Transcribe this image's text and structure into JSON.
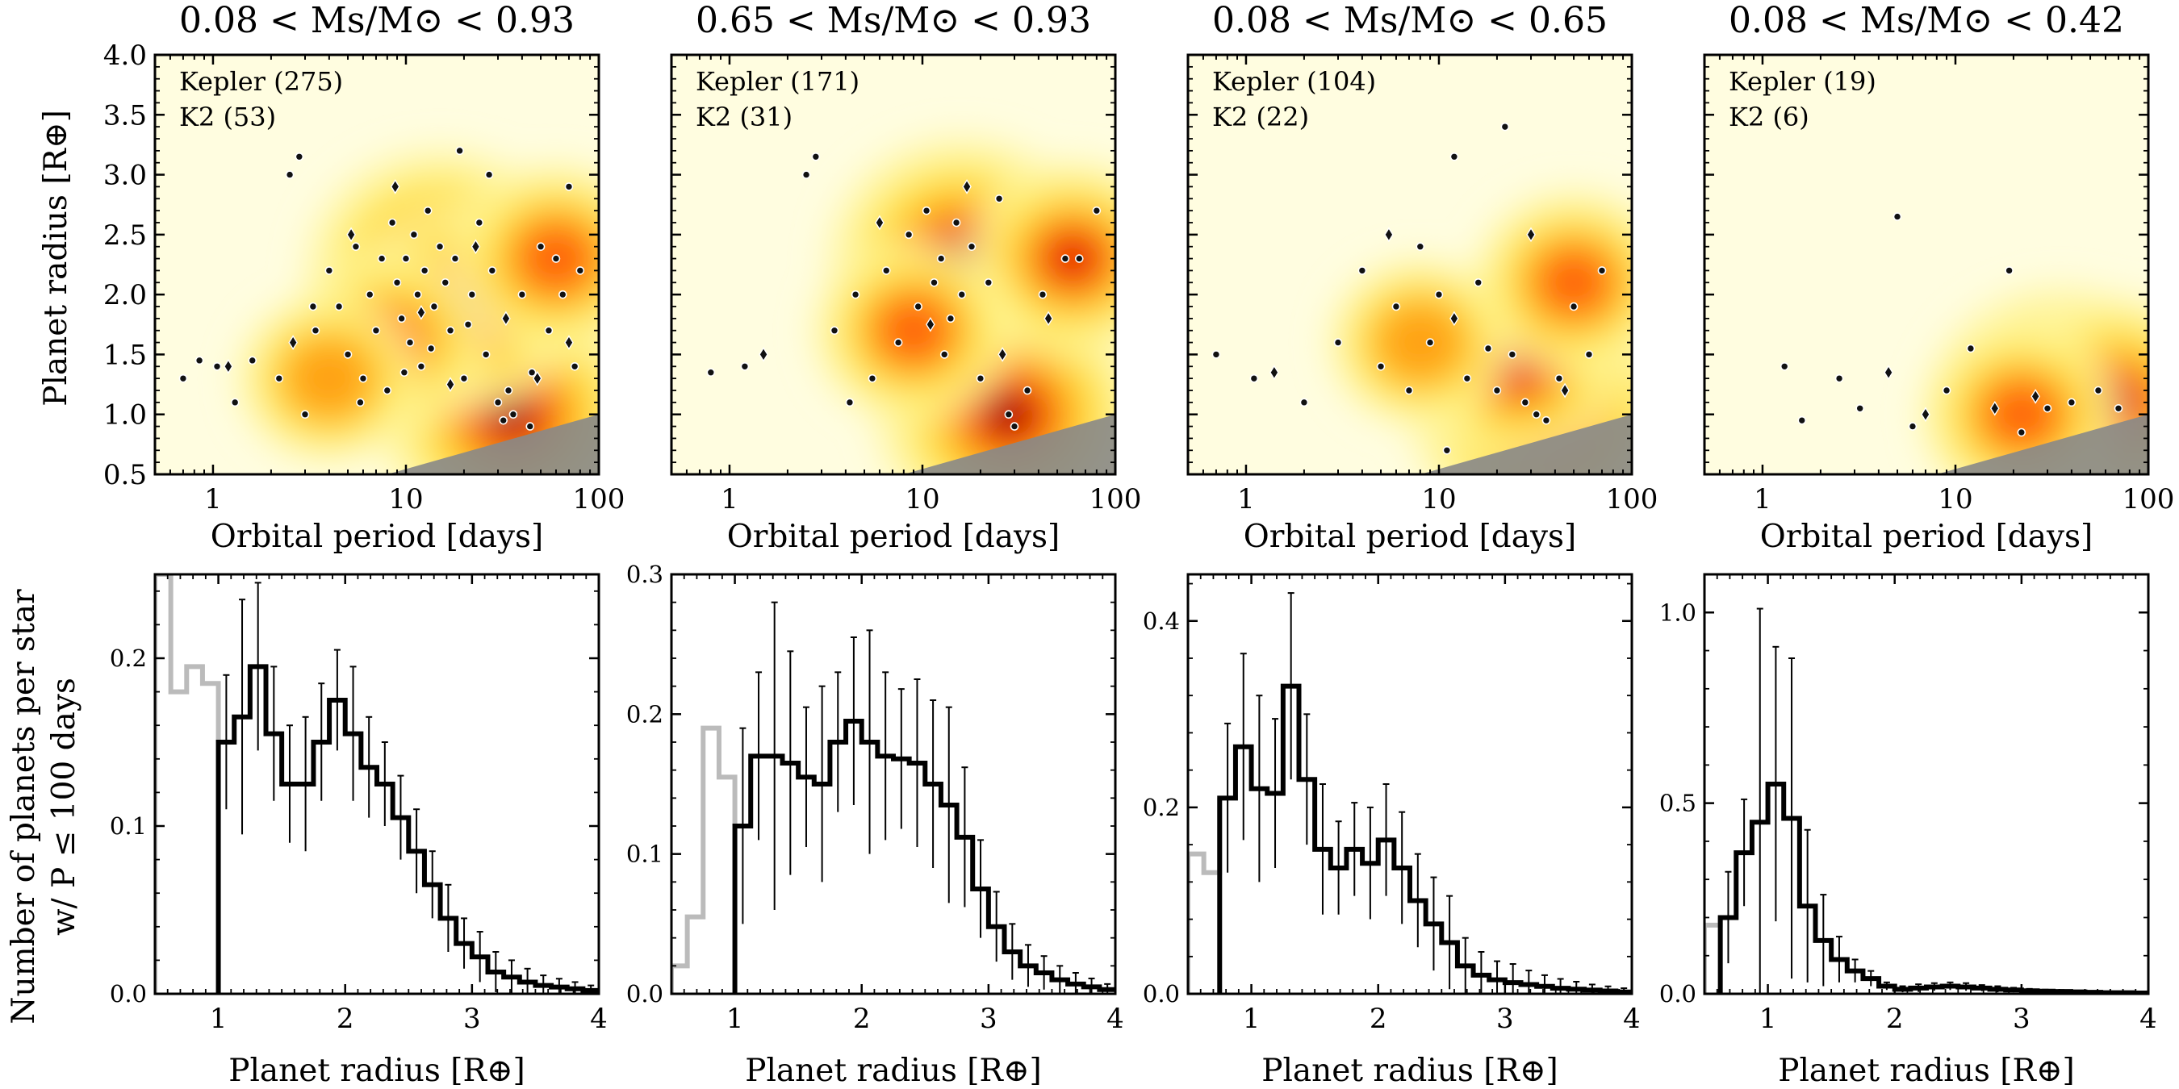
{
  "figure": {
    "ylabel_top": "Planet radius [R⊕]",
    "ylabel_bottom_line1": "Number of planets per star",
    "ylabel_bottom_line2": "w/ P ≤ 100 days",
    "xlabel_top": "Orbital period [days]",
    "xlabel_bottom": "Planet radius [R⊕]"
  },
  "colors": {
    "frame": "#000000",
    "background": "#fffde0",
    "hist_main": "#000000",
    "hist_low": "#bbbbbb",
    "undetectable": "#888888"
  },
  "chart_data": [
    {
      "type": "scatter",
      "title": "0.08 < Ms/M⊙ < 0.93",
      "xlabel": "Orbital period [days]",
      "ylabel": "Planet radius [R⊕]",
      "x_scale": "log",
      "xlim": [
        0.5,
        100
      ],
      "ylim": [
        0.5,
        4.0
      ],
      "x_ticks": [
        "1",
        "10",
        "100"
      ],
      "y_ticks": [
        "0.5",
        "1.0",
        "1.5",
        "2.0",
        "2.5",
        "3.0",
        "3.5",
        "4.0"
      ],
      "legend": [
        "Kepler (275)",
        "K2 (53)"
      ],
      "legend_placement": "top-left",
      "density_peaks": [
        [
          15,
          2.2,
          1.0
        ],
        [
          35,
          1.0,
          1.0
        ],
        [
          20,
          1.9,
          0.7
        ],
        [
          60,
          2.3,
          0.5
        ],
        [
          8,
          1.6,
          0.45
        ],
        [
          4,
          1.3,
          0.3
        ]
      ],
      "kepler_points": [
        [
          0.7,
          1.3
        ],
        [
          0.85,
          1.45
        ],
        [
          1.05,
          1.4
        ],
        [
          1.3,
          1.1
        ],
        [
          1.6,
          1.45
        ],
        [
          2.2,
          1.3
        ],
        [
          2.5,
          3.0
        ],
        [
          2.8,
          3.15
        ],
        [
          3.0,
          1.0
        ],
        [
          3.4,
          1.7
        ],
        [
          4.0,
          2.2
        ],
        [
          4.5,
          1.9
        ],
        [
          5.0,
          1.5
        ],
        [
          5.5,
          2.4
        ],
        [
          6.0,
          1.3
        ],
        [
          6.5,
          2.0
        ],
        [
          7.0,
          1.7
        ],
        [
          7.5,
          2.3
        ],
        [
          8.0,
          1.2
        ],
        [
          8.5,
          2.6
        ],
        [
          9.0,
          2.1
        ],
        [
          9.5,
          1.8
        ],
        [
          10,
          2.3
        ],
        [
          10.5,
          1.6
        ],
        [
          11,
          2.5
        ],
        [
          11.5,
          2.0
        ],
        [
          12,
          1.4
        ],
        [
          12.5,
          2.2
        ],
        [
          13,
          2.7
        ],
        [
          14,
          1.9
        ],
        [
          15,
          2.4
        ],
        [
          16,
          2.1
        ],
        [
          17,
          1.7
        ],
        [
          18,
          2.3
        ],
        [
          19,
          3.2
        ],
        [
          20,
          1.3
        ],
        [
          22,
          2.0
        ],
        [
          24,
          2.6
        ],
        [
          26,
          1.5
        ],
        [
          28,
          2.2
        ],
        [
          30,
          1.1
        ],
        [
          32,
          0.95
        ],
        [
          34,
          1.2
        ],
        [
          36,
          1.0
        ],
        [
          40,
          2.0
        ],
        [
          45,
          1.35
        ],
        [
          50,
          2.4
        ],
        [
          55,
          1.7
        ],
        [
          60,
          2.3
        ],
        [
          65,
          2.0
        ],
        [
          70,
          2.9
        ],
        [
          75,
          1.4
        ],
        [
          80,
          2.2
        ],
        [
          3.3,
          1.9
        ],
        [
          5.8,
          1.1
        ],
        [
          9.8,
          1.35
        ],
        [
          13.5,
          1.55
        ],
        [
          21,
          1.75
        ],
        [
          27,
          3.0
        ],
        [
          44,
          0.9
        ]
      ],
      "k2_points": [
        [
          1.2,
          1.4
        ],
        [
          2.6,
          1.6
        ],
        [
          5.2,
          2.5
        ],
        [
          8.8,
          2.9
        ],
        [
          12,
          1.85
        ],
        [
          17,
          1.25
        ],
        [
          23,
          2.4
        ],
        [
          33,
          1.8
        ],
        [
          48,
          1.3
        ],
        [
          70,
          1.6
        ]
      ]
    },
    {
      "type": "scatter",
      "title": "0.65 < Ms/M⊙ < 0.93",
      "xlabel": "Orbital period [days]",
      "ylabel": "",
      "x_scale": "log",
      "xlim": [
        0.5,
        100
      ],
      "ylim": [
        0.5,
        4.0
      ],
      "x_ticks": [
        "1",
        "10",
        "100"
      ],
      "y_ticks": [],
      "legend": [
        "Kepler (171)",
        "K2 (31)"
      ],
      "legend_placement": "top-left",
      "density_peaks": [
        [
          16,
          2.3,
          1.0
        ],
        [
          28,
          1.0,
          1.0
        ],
        [
          60,
          2.3,
          0.55
        ],
        [
          9,
          1.7,
          0.45
        ]
      ],
      "kepler_points": [
        [
          0.8,
          1.35
        ],
        [
          1.2,
          1.4
        ],
        [
          2.5,
          3.0
        ],
        [
          2.8,
          3.15
        ],
        [
          3.5,
          1.7
        ],
        [
          4.5,
          2.0
        ],
        [
          5.5,
          1.3
        ],
        [
          6.5,
          2.2
        ],
        [
          7.5,
          1.6
        ],
        [
          8.5,
          2.5
        ],
        [
          9.5,
          1.9
        ],
        [
          10.5,
          2.7
        ],
        [
          11.5,
          2.1
        ],
        [
          12.5,
          2.3
        ],
        [
          14,
          1.8
        ],
        [
          15,
          2.6
        ],
        [
          16,
          2.0
        ],
        [
          18,
          2.4
        ],
        [
          20,
          1.3
        ],
        [
          22,
          2.1
        ],
        [
          25,
          2.8
        ],
        [
          28,
          1.0
        ],
        [
          30,
          0.9
        ],
        [
          35,
          1.2
        ],
        [
          42,
          2.0
        ],
        [
          55,
          2.3
        ],
        [
          65,
          2.3
        ],
        [
          80,
          2.7
        ],
        [
          4.2,
          1.1
        ],
        [
          13,
          1.5
        ]
      ],
      "k2_points": [
        [
          1.5,
          1.5
        ],
        [
          6,
          2.6
        ],
        [
          11,
          1.75
        ],
        [
          17,
          2.9
        ],
        [
          26,
          1.5
        ],
        [
          45,
          1.8
        ]
      ]
    },
    {
      "type": "scatter",
      "title": "0.08 < Ms/M⊙ < 0.65",
      "xlabel": "Orbital period [days]",
      "ylabel": "",
      "x_scale": "log",
      "xlim": [
        0.5,
        100
      ],
      "ylim": [
        0.5,
        4.0
      ],
      "x_ticks": [
        "1",
        "10",
        "100"
      ],
      "y_ticks": [],
      "legend": [
        "Kepler (104)",
        "K2 (22)"
      ],
      "legend_placement": "top-left",
      "density_peaks": [
        [
          35,
          1.0,
          1.0
        ],
        [
          25,
          1.4,
          0.55
        ],
        [
          50,
          2.1,
          0.45
        ],
        [
          8,
          1.6,
          0.3
        ]
      ],
      "kepler_points": [
        [
          0.7,
          1.5
        ],
        [
          1.1,
          1.3
        ],
        [
          2.0,
          1.1
        ],
        [
          3.0,
          1.6
        ],
        [
          4.0,
          2.2
        ],
        [
          5.0,
          1.4
        ],
        [
          6.0,
          1.9
        ],
        [
          7.0,
          1.2
        ],
        [
          8.0,
          2.4
        ],
        [
          9.0,
          1.6
        ],
        [
          10,
          2.0
        ],
        [
          12,
          3.15
        ],
        [
          14,
          1.3
        ],
        [
          16,
          2.1
        ],
        [
          18,
          1.55
        ],
        [
          20,
          1.2
        ],
        [
          24,
          1.5
        ],
        [
          28,
          1.1
        ],
        [
          32,
          1.0
        ],
        [
          36,
          0.95
        ],
        [
          42,
          1.3
        ],
        [
          50,
          1.9
        ],
        [
          60,
          1.5
        ],
        [
          70,
          2.2
        ],
        [
          22,
          3.4
        ],
        [
          11,
          0.7
        ]
      ],
      "k2_points": [
        [
          1.4,
          1.35
        ],
        [
          5.5,
          2.5
        ],
        [
          12,
          1.8
        ],
        [
          30,
          2.5
        ],
        [
          45,
          1.2
        ]
      ]
    },
    {
      "type": "scatter",
      "title": "0.08 < Ms/M⊙ < 0.42",
      "xlabel": "Orbital period [days]",
      "ylabel": "",
      "x_scale": "log",
      "xlim": [
        0.5,
        100
      ],
      "ylim": [
        0.5,
        4.0
      ],
      "x_ticks": [
        "1",
        "10",
        "100"
      ],
      "y_ticks": [],
      "legend": [
        "Kepler (19)",
        "K2 (6)"
      ],
      "legend_placement": "top-left",
      "density_peaks": [
        [
          35,
          1.05,
          1.0
        ],
        [
          65,
          1.1,
          0.7
        ],
        [
          22,
          1.0,
          0.45
        ]
      ],
      "kepler_points": [
        [
          1.3,
          1.4
        ],
        [
          1.6,
          0.95
        ],
        [
          2.5,
          1.3
        ],
        [
          3.2,
          1.05
        ],
        [
          5.0,
          2.65
        ],
        [
          6.0,
          0.9
        ],
        [
          9.0,
          1.2
        ],
        [
          12,
          1.55
        ],
        [
          19,
          2.2
        ],
        [
          22,
          0.85
        ],
        [
          30,
          1.05
        ],
        [
          40,
          1.1
        ],
        [
          55,
          1.2
        ],
        [
          70,
          1.05
        ]
      ],
      "k2_points": [
        [
          4.5,
          1.35
        ],
        [
          7.0,
          1.0
        ],
        [
          16,
          1.05
        ],
        [
          26,
          1.15
        ]
      ]
    },
    {
      "type": "bar",
      "xlabel": "Planet radius [R⊕]",
      "ylabel": "Number of planets per star w/ P ≤ 100 days",
      "xlim": [
        0.5,
        4.0
      ],
      "ylim": [
        0.0,
        0.25
      ],
      "x_ticks": [
        "1",
        "2",
        "3",
        "4"
      ],
      "y_ticks": [
        "0.0",
        "0.1",
        "0.2"
      ],
      "y_tick_values": [
        0.0,
        0.1,
        0.2
      ],
      "bin_width": 0.125,
      "low_bins_x": [
        0.5,
        0.625,
        0.75,
        0.875
      ],
      "low_bins_values": [
        0.25,
        0.18,
        0.195,
        0.185
      ],
      "bins_x": [
        1.0,
        1.125,
        1.25,
        1.375,
        1.5,
        1.625,
        1.75,
        1.875,
        2.0,
        2.125,
        2.25,
        2.375,
        2.5,
        2.625,
        2.75,
        2.875,
        3.0,
        3.125,
        3.25,
        3.375,
        3.5,
        3.625,
        3.75,
        3.875
      ],
      "values": [
        0.15,
        0.165,
        0.195,
        0.155,
        0.125,
        0.125,
        0.15,
        0.175,
        0.155,
        0.135,
        0.125,
        0.105,
        0.085,
        0.065,
        0.045,
        0.03,
        0.022,
        0.013,
        0.01,
        0.007,
        0.005,
        0.004,
        0.003,
        0.002
      ],
      "errors": [
        0.04,
        0.07,
        0.05,
        0.04,
        0.035,
        0.04,
        0.035,
        0.03,
        0.04,
        0.03,
        0.025,
        0.025,
        0.025,
        0.02,
        0.02,
        0.015,
        0.015,
        0.012,
        0.01,
        0.008,
        0.006,
        0.005,
        0.004,
        0.003
      ]
    },
    {
      "type": "bar",
      "xlabel": "Planet radius [R⊕]",
      "ylabel": "",
      "xlim": [
        0.5,
        4.0
      ],
      "ylim": [
        0.0,
        0.3
      ],
      "x_ticks": [
        "1",
        "2",
        "3",
        "4"
      ],
      "y_ticks": [
        "0.0",
        "0.1",
        "0.2",
        "0.3"
      ],
      "y_tick_values": [
        0.0,
        0.1,
        0.2,
        0.3
      ],
      "bin_width": 0.125,
      "low_bins_x": [
        0.5,
        0.625,
        0.75,
        0.875
      ],
      "low_bins_values": [
        0.02,
        0.055,
        0.19,
        0.155
      ],
      "bins_x": [
        1.0,
        1.125,
        1.25,
        1.375,
        1.5,
        1.625,
        1.75,
        1.875,
        2.0,
        2.125,
        2.25,
        2.375,
        2.5,
        2.625,
        2.75,
        2.875,
        3.0,
        3.125,
        3.25,
        3.375,
        3.5,
        3.625,
        3.75,
        3.875
      ],
      "values": [
        0.12,
        0.17,
        0.17,
        0.165,
        0.155,
        0.15,
        0.18,
        0.195,
        0.18,
        0.17,
        0.168,
        0.165,
        0.15,
        0.135,
        0.112,
        0.075,
        0.048,
        0.03,
        0.02,
        0.015,
        0.01,
        0.007,
        0.005,
        0.003
      ],
      "errors": [
        0.07,
        0.06,
        0.11,
        0.08,
        0.05,
        0.07,
        0.05,
        0.06,
        0.08,
        0.06,
        0.05,
        0.06,
        0.06,
        0.07,
        0.05,
        0.035,
        0.025,
        0.02,
        0.015,
        0.012,
        0.01,
        0.008,
        0.006,
        0.004
      ]
    },
    {
      "type": "bar",
      "xlabel": "Planet radius [R⊕]",
      "ylabel": "",
      "xlim": [
        0.5,
        4.0
      ],
      "ylim": [
        0.0,
        0.45
      ],
      "x_ticks": [
        "1",
        "2",
        "3",
        "4"
      ],
      "y_ticks": [
        "0.0",
        "0.2",
        "0.4"
      ],
      "y_tick_values": [
        0.0,
        0.2,
        0.4
      ],
      "bin_width": 0.125,
      "low_bins_x": [
        0.5,
        0.625
      ],
      "low_bins_values": [
        0.15,
        0.13
      ],
      "bins_x": [
        0.75,
        0.875,
        1.0,
        1.125,
        1.25,
        1.375,
        1.5,
        1.625,
        1.75,
        1.875,
        2.0,
        2.125,
        2.25,
        2.375,
        2.5,
        2.625,
        2.75,
        2.875,
        3.0,
        3.125,
        3.25,
        3.375,
        3.5,
        3.625,
        3.75,
        3.875
      ],
      "values": [
        0.21,
        0.265,
        0.22,
        0.215,
        0.33,
        0.23,
        0.155,
        0.135,
        0.155,
        0.14,
        0.165,
        0.135,
        0.1,
        0.075,
        0.055,
        0.03,
        0.02,
        0.015,
        0.012,
        0.01,
        0.008,
        0.006,
        0.005,
        0.004,
        0.003,
        0.002
      ],
      "errors": [
        0.08,
        0.1,
        0.1,
        0.08,
        0.1,
        0.07,
        0.07,
        0.05,
        0.05,
        0.06,
        0.06,
        0.06,
        0.05,
        0.05,
        0.05,
        0.03,
        0.025,
        0.02,
        0.02,
        0.015,
        0.012,
        0.01,
        0.008,
        0.006,
        0.005,
        0.004
      ]
    },
    {
      "type": "bar",
      "xlabel": "Planet radius [R⊕]",
      "ylabel": "",
      "xlim": [
        0.5,
        4.0
      ],
      "ylim": [
        0.0,
        1.1
      ],
      "x_ticks": [
        "1",
        "2",
        "3",
        "4"
      ],
      "y_ticks": [
        "0.0",
        "0.5",
        "1.0"
      ],
      "y_tick_values": [
        0.0,
        0.5,
        1.0
      ],
      "bin_width": 0.125,
      "low_bins_x": [
        0.5
      ],
      "low_bins_values": [
        0.18
      ],
      "bins_x": [
        0.625,
        0.75,
        0.875,
        1.0,
        1.125,
        1.25,
        1.375,
        1.5,
        1.625,
        1.75,
        1.875,
        2.0,
        2.125,
        2.25,
        2.375,
        2.5,
        2.625,
        2.75,
        2.875,
        3.0,
        3.125,
        3.25,
        3.375,
        3.5,
        3.625,
        3.75,
        3.875
      ],
      "values": [
        0.2,
        0.37,
        0.45,
        0.55,
        0.46,
        0.23,
        0.14,
        0.09,
        0.06,
        0.04,
        0.02,
        0.012,
        0.015,
        0.018,
        0.02,
        0.018,
        0.015,
        0.012,
        0.01,
        0.008,
        0.007,
        0.006,
        0.005,
        0.004,
        0.003,
        0.003,
        0.002
      ],
      "errors": [
        0.12,
        0.14,
        0.56,
        0.36,
        0.42,
        0.2,
        0.12,
        0.06,
        0.03,
        0.02,
        0.01,
        0.008,
        0.01,
        0.01,
        0.01,
        0.01,
        0.008,
        0.008,
        0.006,
        0.005,
        0.004,
        0.004,
        0.003,
        0.003,
        0.002,
        0.002,
        0.002
      ]
    }
  ]
}
